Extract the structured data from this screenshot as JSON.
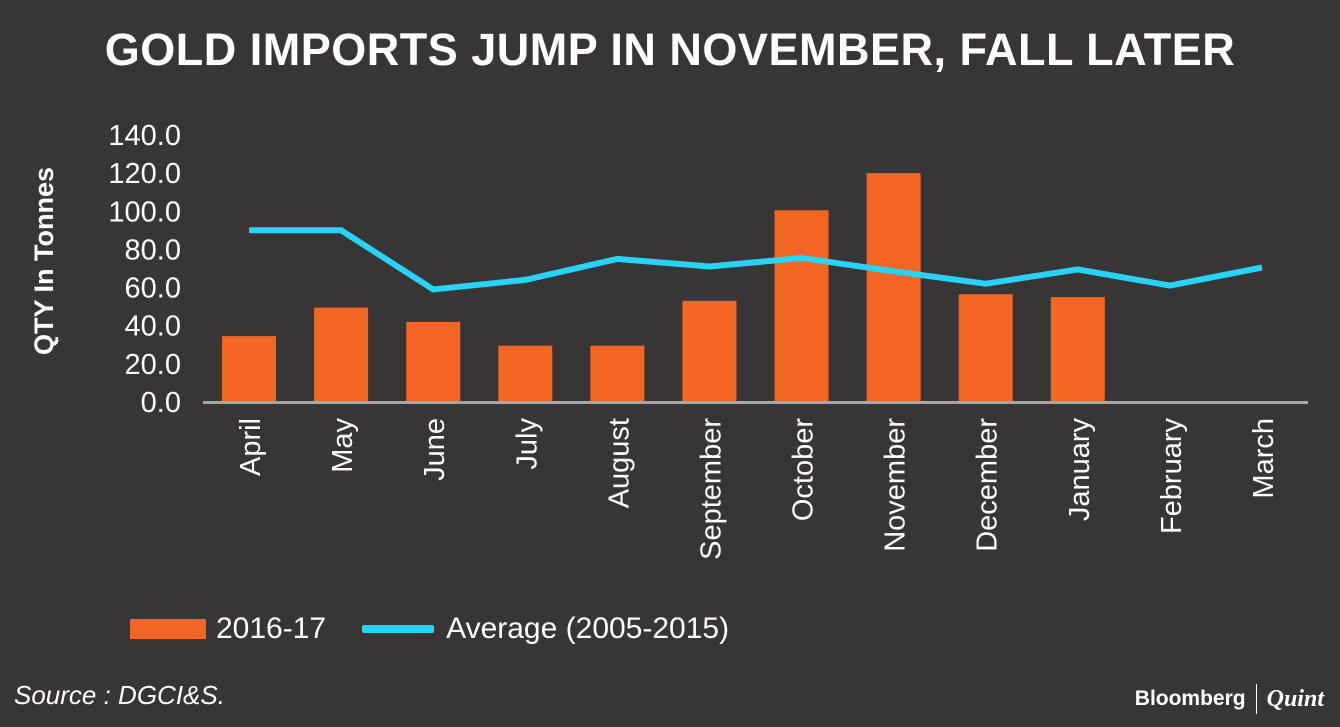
{
  "chart_data": {
    "type": "bar",
    "title": "GOLD IMPORTS JUMP IN NOVEMBER, FALL LATER",
    "ylabel": "QTY In Tonnes",
    "xlabel": "",
    "ylim": [
      0,
      140
    ],
    "yticks": [
      "0.0",
      "20.0",
      "40.0",
      "60.0",
      "80.0",
      "100.0",
      "120.0",
      "140.0"
    ],
    "categories": [
      "April",
      "May",
      "June",
      "July",
      "August",
      "September",
      "October",
      "November",
      "December",
      "January",
      "February",
      "March"
    ],
    "series": [
      {
        "name": "2016-17",
        "type": "bar",
        "color": "#f26522",
        "values": [
          34,
          49,
          41.5,
          29,
          29,
          52.5,
          100,
          119.5,
          56,
          54.5,
          null,
          null
        ]
      },
      {
        "name": "Average (2005-2015)",
        "type": "line",
        "color": "#29d3f5",
        "values": [
          89.5,
          89.5,
          58.5,
          63.5,
          74.5,
          70.5,
          75,
          68,
          61.5,
          69,
          60.5,
          70
        ]
      }
    ],
    "legend_position": "bottom-left",
    "source": "Source : DGCI&S."
  },
  "brand": {
    "name_left": "Bloomberg",
    "name_right": "Quint"
  },
  "colors": {
    "background": "#373536",
    "axis": "#a6a6a6"
  }
}
